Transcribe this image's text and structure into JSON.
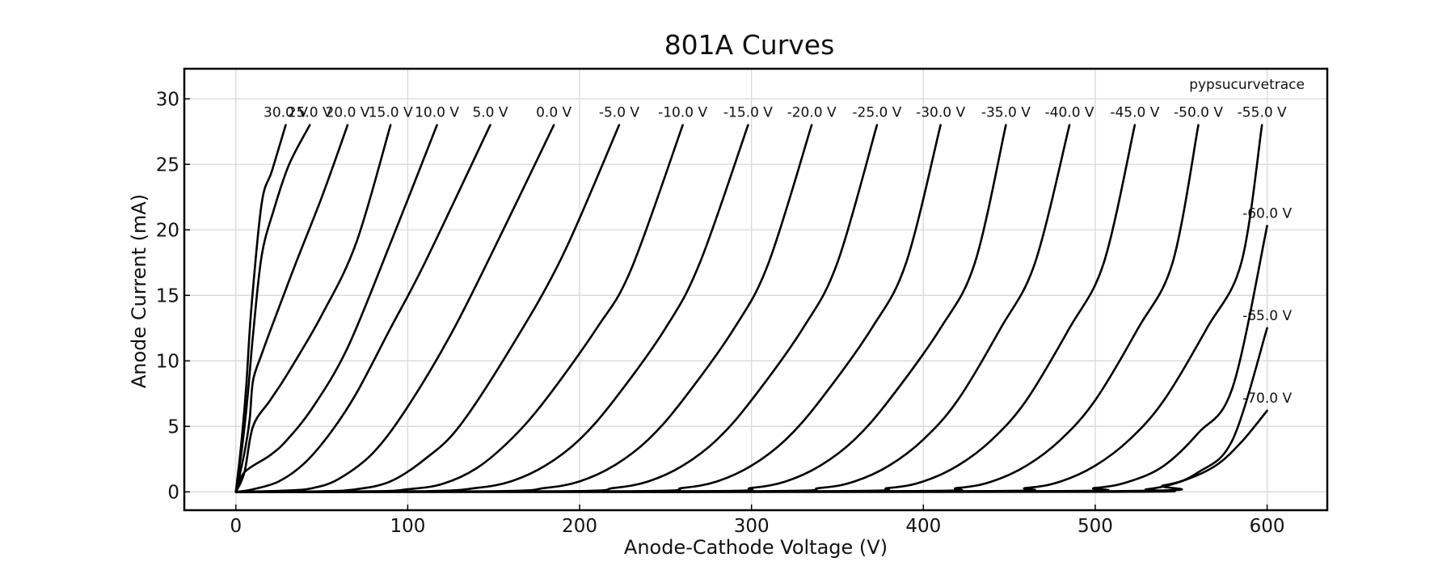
{
  "chart_data": {
    "type": "line",
    "title": "801A Curves",
    "xlabel": "Anode-Cathode Voltage (V)",
    "ylabel": "Anode Current (mA)",
    "annotation": "pypsucurvetrace",
    "xlim": [
      -30,
      635
    ],
    "ylim": [
      -1.4,
      32.3
    ],
    "xticks": [
      0,
      100,
      200,
      300,
      400,
      500,
      600
    ],
    "yticks": [
      0,
      5,
      10,
      15,
      20,
      25,
      30
    ],
    "grid": true,
    "series": [
      {
        "name": "30.0 V",
        "points": [
          [
            0,
            0
          ],
          [
            3,
            3.5
          ],
          [
            6,
            8
          ],
          [
            9,
            14
          ],
          [
            15,
            22
          ],
          [
            21,
            24.5
          ],
          [
            29,
            28
          ]
        ]
      },
      {
        "name": "25.0 V",
        "points": [
          [
            0,
            0
          ],
          [
            4,
            3.8
          ],
          [
            7,
            7.5
          ],
          [
            10,
            12
          ],
          [
            15,
            18
          ],
          [
            22,
            21.5
          ],
          [
            31,
            25
          ],
          [
            43,
            28
          ]
        ]
      },
      {
        "name": "20.0 V",
        "points": [
          [
            0,
            0
          ],
          [
            5,
            3
          ],
          [
            8,
            5.5
          ],
          [
            10,
            8.5
          ],
          [
            15,
            10.5
          ],
          [
            22,
            13
          ],
          [
            35,
            17.5
          ],
          [
            50,
            22.5
          ],
          [
            65,
            28
          ]
        ]
      },
      {
        "name": "15.0 V",
        "points": [
          [
            0,
            0
          ],
          [
            5,
            1.5
          ],
          [
            10,
            5
          ],
          [
            20,
            7
          ],
          [
            30,
            9
          ],
          [
            50,
            13.5
          ],
          [
            70,
            19
          ],
          [
            90,
            28
          ]
        ]
      },
      {
        "name": "10.0 V",
        "points": [
          [
            0,
            0
          ],
          [
            5,
            1.5
          ],
          [
            20,
            2.8
          ],
          [
            30,
            4
          ],
          [
            45,
            6.5
          ],
          [
            65,
            11
          ],
          [
            90,
            19
          ],
          [
            117,
            28
          ]
        ]
      },
      {
        "name": "5.0 V",
        "points": [
          [
            0,
            0
          ],
          [
            10,
            0.2
          ],
          [
            25,
            0.8
          ],
          [
            40,
            2.2
          ],
          [
            55,
            4.5
          ],
          [
            70,
            7.5
          ],
          [
            90,
            12.5
          ],
          [
            110,
            17.5
          ],
          [
            148,
            28
          ]
        ]
      },
      {
        "name": "0.0 V",
        "points": [
          [
            0,
            0
          ],
          [
            30,
            0.1
          ],
          [
            45,
            0.3
          ],
          [
            60,
            1
          ],
          [
            80,
            3
          ],
          [
            100,
            6.5
          ],
          [
            125,
            12
          ],
          [
            150,
            18.5
          ],
          [
            185,
            28
          ]
        ]
      },
      {
        "name": "-5.0 V",
        "points": [
          [
            0,
            0
          ],
          [
            50,
            0.05
          ],
          [
            70,
            0.2
          ],
          [
            90,
            0.8
          ],
          [
            110,
            2.5
          ],
          [
            130,
            5
          ],
          [
            160,
            11
          ],
          [
            190,
            18
          ],
          [
            223,
            28
          ]
        ]
      },
      {
        "name": "-10.0 V",
        "points": [
          [
            0,
            0
          ],
          [
            80,
            0.05
          ],
          [
            100,
            0.2
          ],
          [
            120,
            0.6
          ],
          [
            140,
            1.8
          ],
          [
            160,
            4
          ],
          [
            180,
            7
          ],
          [
            210,
            12.5
          ],
          [
            230,
            17
          ],
          [
            260,
            28
          ]
        ]
      },
      {
        "name": "-15.0 V",
        "points": [
          [
            0,
            0
          ],
          [
            110,
            0.05
          ],
          [
            140,
            0.3
          ],
          [
            160,
            0.8
          ],
          [
            180,
            2
          ],
          [
            200,
            4
          ],
          [
            220,
            7
          ],
          [
            250,
            12.5
          ],
          [
            270,
            17.5
          ],
          [
            298,
            28
          ]
        ]
      },
      {
        "name": "-20.0 V",
        "points": [
          [
            0,
            0
          ],
          [
            150,
            0.05
          ],
          [
            180,
            0.3
          ],
          [
            200,
            0.8
          ],
          [
            220,
            2
          ],
          [
            240,
            4
          ],
          [
            260,
            7
          ],
          [
            290,
            12.5
          ],
          [
            310,
            17.5
          ],
          [
            335,
            28
          ]
        ]
      },
      {
        "name": "-25.0 V",
        "points": [
          [
            0,
            0
          ],
          [
            190,
            0.05
          ],
          [
            220,
            0.3
          ],
          [
            240,
            0.8
          ],
          [
            260,
            2
          ],
          [
            280,
            4
          ],
          [
            300,
            7
          ],
          [
            330,
            12.5
          ],
          [
            350,
            17.5
          ],
          [
            373,
            28
          ]
        ]
      },
      {
        "name": "-30.0 V",
        "points": [
          [
            0,
            0
          ],
          [
            230,
            0.05
          ],
          [
            260,
            0.3
          ],
          [
            280,
            0.8
          ],
          [
            300,
            2
          ],
          [
            320,
            4
          ],
          [
            340,
            7
          ],
          [
            370,
            12.5
          ],
          [
            390,
            17.5
          ],
          [
            410,
            28
          ]
        ]
      },
      {
        "name": "-35.0 V",
        "points": [
          [
            0,
            0
          ],
          [
            270,
            0.05
          ],
          [
            300,
            0.3
          ],
          [
            320,
            0.8
          ],
          [
            340,
            2
          ],
          [
            360,
            4
          ],
          [
            380,
            7
          ],
          [
            410,
            12.5
          ],
          [
            430,
            17.5
          ],
          [
            448,
            28
          ]
        ]
      },
      {
        "name": "-40.0 V",
        "points": [
          [
            0,
            0
          ],
          [
            300,
            0.05
          ],
          [
            340,
            0.3
          ],
          [
            360,
            0.8
          ],
          [
            380,
            2
          ],
          [
            400,
            4
          ],
          [
            420,
            7
          ],
          [
            445,
            12.5
          ],
          [
            465,
            17.5
          ],
          [
            485,
            28
          ]
        ]
      },
      {
        "name": "-45.0 V",
        "points": [
          [
            0,
            0
          ],
          [
            340,
            0.05
          ],
          [
            380,
            0.3
          ],
          [
            400,
            0.8
          ],
          [
            420,
            2
          ],
          [
            440,
            4
          ],
          [
            460,
            7
          ],
          [
            485,
            12.5
          ],
          [
            505,
            17.5
          ],
          [
            523,
            28
          ]
        ]
      },
      {
        "name": "-50.0 V",
        "points": [
          [
            0,
            0
          ],
          [
            380,
            0.05
          ],
          [
            420,
            0.3
          ],
          [
            440,
            0.8
          ],
          [
            460,
            2
          ],
          [
            480,
            4
          ],
          [
            500,
            7
          ],
          [
            525,
            12.5
          ],
          [
            545,
            17.5
          ],
          [
            560,
            28
          ]
        ]
      },
      {
        "name": "-55.0 V",
        "points": [
          [
            0,
            0
          ],
          [
            420,
            0.05
          ],
          [
            460,
            0.3
          ],
          [
            480,
            0.8
          ],
          [
            500,
            2
          ],
          [
            520,
            4
          ],
          [
            540,
            7
          ],
          [
            565,
            12.5
          ],
          [
            585,
            17.5
          ],
          [
            597,
            28
          ]
        ]
      },
      {
        "name": "-60.0 V",
        "points": [
          [
            0,
            0
          ],
          [
            460,
            0.05
          ],
          [
            500,
            0.3
          ],
          [
            520,
            0.8
          ],
          [
            540,
            2
          ],
          [
            560,
            4.5
          ],
          [
            580,
            8
          ],
          [
            600,
            20.3
          ]
        ]
      },
      {
        "name": "-65.0 V",
        "points": [
          [
            0,
            0
          ],
          [
            500,
            0.05
          ],
          [
            540,
            0.5
          ],
          [
            560,
            1.5
          ],
          [
            580,
            4
          ],
          [
            600,
            12.5
          ]
        ]
      },
      {
        "name": "-70.0 V",
        "points": [
          [
            0,
            0
          ],
          [
            500,
            0
          ],
          [
            530,
            0.2
          ],
          [
            550,
            0.8
          ],
          [
            570,
            2
          ],
          [
            585,
            3.8
          ],
          [
            600,
            6.2
          ]
        ]
      }
    ]
  }
}
